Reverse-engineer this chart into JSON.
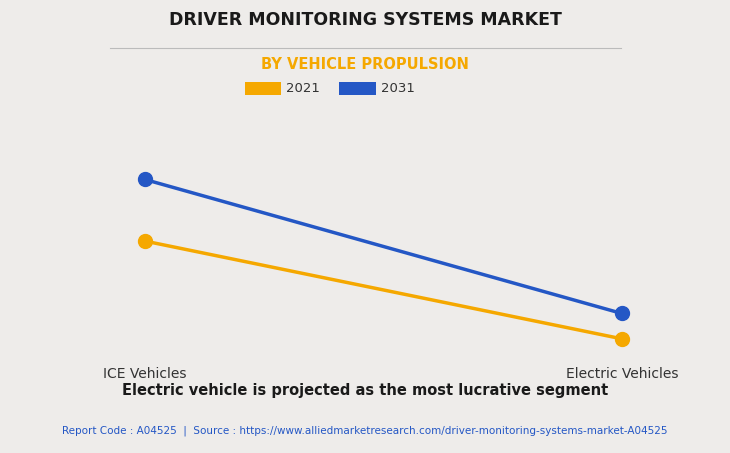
{
  "title": "DRIVER MONITORING SYSTEMS MARKET",
  "subtitle": "BY VEHICLE PROPULSION",
  "categories": [
    "ICE Vehicles",
    "Electric Vehicles"
  ],
  "series": [
    {
      "label": "2021",
      "color": "#F5A800",
      "values": [
        0.62,
        0.08
      ]
    },
    {
      "label": "2031",
      "color": "#2457C5",
      "values": [
        0.96,
        0.22
      ]
    }
  ],
  "ylim": [
    0.0,
    1.05
  ],
  "background_color": "#EEECEA",
  "plot_bg_color": "#EEECEA",
  "title_fontsize": 12.5,
  "subtitle_fontsize": 10.5,
  "subtitle_color": "#F5A800",
  "footer_text": "Electric vehicle is projected as the most lucrative segment",
  "source_text": "Report Code : A04525  |  Source : https://www.alliedmarketresearch.com/driver-monitoring-systems-market-A04525",
  "source_color": "#2457C5",
  "grid_color": "#D0CEC9",
  "marker_size": 10,
  "line_width": 2.5,
  "yticks": [
    0.0,
    0.2,
    0.4,
    0.6,
    0.8,
    1.0
  ]
}
